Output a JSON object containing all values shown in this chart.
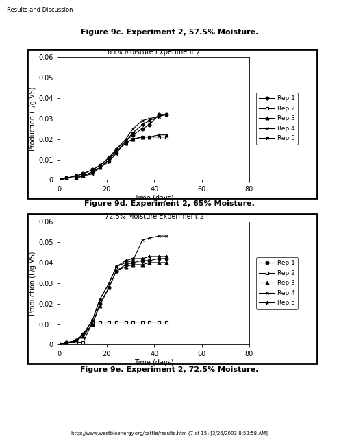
{
  "page_title": "Results and Discussion",
  "footer": "http://www.westbioenergy.org/cattle/results.htm (7 of 15) [3/26/2003 8:52:58 AM]",
  "fig_title_top": "Figure 9c. Experiment 2, 57.5% Moisture.",
  "fig_title_mid": "Figure 9d. Experiment 2, 65% Moisture.",
  "fig_title_bot": "Figure 9e. Experiment 2, 72.5% Moisture.",
  "chart1": {
    "title": "65% Moisture Experiment 2",
    "xlabel": "Time (days)",
    "ylabel": "Production (L/g VS)",
    "xlim": [
      0,
      80
    ],
    "ylim": [
      0,
      0.06
    ],
    "yticks": [
      0,
      0.01,
      0.02,
      0.03,
      0.04,
      0.05,
      0.06
    ],
    "xticks": [
      0,
      20,
      40,
      60,
      80
    ],
    "rep1": {
      "x": [
        0,
        3,
        7,
        10,
        14,
        17,
        21,
        24,
        28,
        31,
        35,
        38,
        42,
        45
      ],
      "y": [
        0,
        0.001,
        0.002,
        0.003,
        0.005,
        0.007,
        0.011,
        0.015,
        0.019,
        0.022,
        0.025,
        0.027,
        0.032,
        0.032
      ]
    },
    "rep2": {
      "x": [
        0,
        3,
        7,
        10,
        14,
        17,
        21,
        24,
        28,
        31,
        35,
        38,
        42,
        45
      ],
      "y": [
        0,
        0.001,
        0.001,
        0.002,
        0.004,
        0.006,
        0.01,
        0.014,
        0.018,
        0.02,
        0.021,
        0.021,
        0.021,
        0.021
      ]
    },
    "rep3": {
      "x": [
        0,
        3,
        7,
        10,
        14,
        17,
        21,
        24,
        28,
        31,
        35,
        38,
        42,
        45
      ],
      "y": [
        0,
        0.001,
        0.001,
        0.002,
        0.004,
        0.006,
        0.01,
        0.014,
        0.018,
        0.02,
        0.021,
        0.021,
        0.022,
        0.022
      ]
    },
    "rep4": {
      "x": [
        0,
        3,
        7,
        10,
        14,
        17,
        21,
        24,
        28,
        31,
        35,
        38,
        42,
        45
      ],
      "y": [
        0,
        0.001,
        0.002,
        0.003,
        0.005,
        0.007,
        0.011,
        0.015,
        0.02,
        0.025,
        0.029,
        0.03,
        0.031,
        0.032
      ]
    },
    "rep5": {
      "x": [
        0,
        3,
        7,
        10,
        14,
        17,
        21,
        24,
        28,
        31,
        35,
        38,
        42,
        45
      ],
      "y": [
        0,
        0.001,
        0.001,
        0.002,
        0.003,
        0.006,
        0.009,
        0.013,
        0.019,
        0.023,
        0.027,
        0.029,
        0.031,
        0.032
      ]
    }
  },
  "chart2": {
    "title": "72.5% Moisture Experiment 2",
    "xlabel": "Time (days)",
    "ylabel": "Production (L/g VS)",
    "xlim": [
      0,
      80
    ],
    "ylim": [
      0,
      0.06
    ],
    "yticks": [
      0,
      0.01,
      0.02,
      0.03,
      0.04,
      0.05,
      0.06
    ],
    "xticks": [
      0,
      20,
      40,
      60,
      80
    ],
    "rep1": {
      "x": [
        0,
        3,
        7,
        10,
        14,
        17,
        21,
        24,
        28,
        31,
        35,
        38,
        42,
        45
      ],
      "y": [
        0,
        0.001,
        0.002,
        0.005,
        0.01,
        0.02,
        0.028,
        0.036,
        0.039,
        0.04,
        0.041,
        0.041,
        0.042,
        0.042
      ]
    },
    "rep2": {
      "x": [
        0,
        3,
        7,
        10,
        14,
        17,
        21,
        24,
        28,
        31,
        35,
        38,
        42,
        45
      ],
      "y": [
        0,
        0.001,
        0.001,
        0.001,
        0.011,
        0.011,
        0.011,
        0.011,
        0.011,
        0.011,
        0.011,
        0.011,
        0.011,
        0.011
      ]
    },
    "rep3": {
      "x": [
        0,
        3,
        7,
        10,
        14,
        17,
        21,
        24,
        28,
        31,
        35,
        38,
        42,
        45
      ],
      "y": [
        0,
        0.001,
        0.002,
        0.004,
        0.01,
        0.019,
        0.028,
        0.036,
        0.038,
        0.039,
        0.039,
        0.04,
        0.04,
        0.04
      ]
    },
    "rep4": {
      "x": [
        0,
        3,
        7,
        10,
        14,
        17,
        21,
        24,
        28,
        31,
        35,
        38,
        42,
        45
      ],
      "y": [
        0,
        0.001,
        0.002,
        0.005,
        0.012,
        0.022,
        0.03,
        0.038,
        0.04,
        0.041,
        0.051,
        0.052,
        0.053,
        0.053
      ]
    },
    "rep5": {
      "x": [
        0,
        3,
        7,
        10,
        14,
        17,
        21,
        24,
        28,
        31,
        35,
        38,
        42,
        45
      ],
      "y": [
        0,
        0.001,
        0.002,
        0.005,
        0.012,
        0.022,
        0.03,
        0.038,
        0.041,
        0.042,
        0.042,
        0.043,
        0.043,
        0.043
      ]
    }
  },
  "legend_labels": [
    "Rep 1",
    "Rep 2",
    "Rep 3",
    "Rep 4",
    "Rep 5"
  ],
  "markers": [
    "o",
    "s",
    "^",
    "x",
    "*"
  ],
  "colors": [
    "black",
    "black",
    "black",
    "black",
    "black"
  ],
  "ytick_labels": [
    "0",
    "0.01",
    "0.02",
    "0.03",
    "0.04",
    "0.05",
    "0.06"
  ]
}
